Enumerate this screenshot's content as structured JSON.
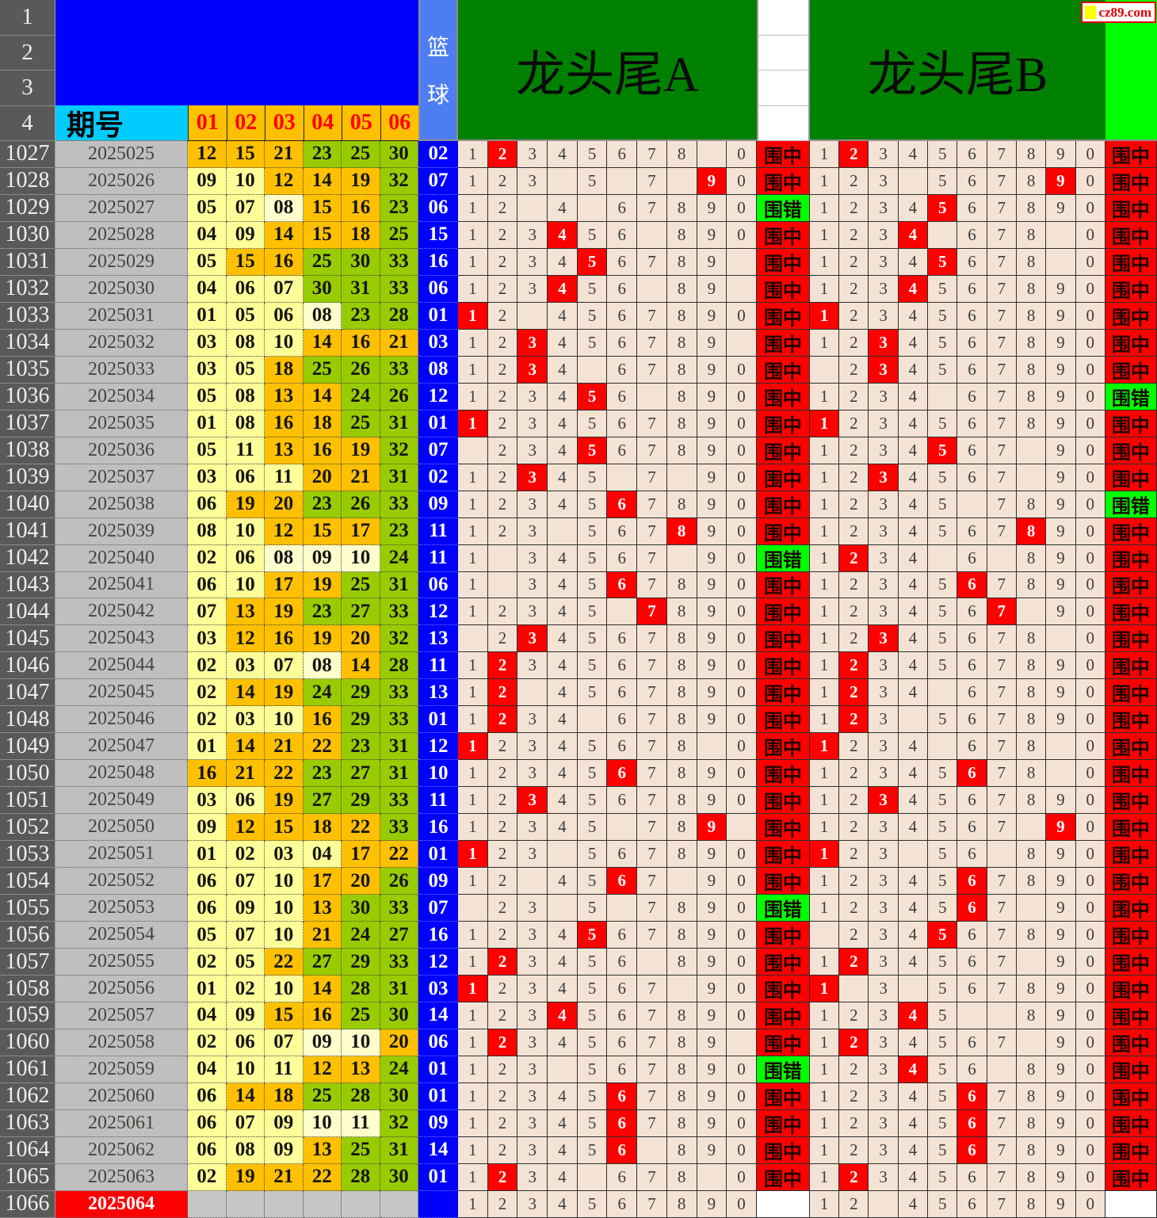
{
  "watermark": {
    "text": "cz89.com"
  },
  "corner_rows": [
    "1",
    "2",
    "3",
    "4"
  ],
  "header": {
    "issue": "期号",
    "balls": [
      "01",
      "02",
      "03",
      "04",
      "05",
      "06"
    ],
    "basket_chars": [
      "篮",
      "球"
    ],
    "a_title": "龙头尾A",
    "b_title": "龙头尾B"
  },
  "labels": {
    "z": "围中",
    "c": "围错"
  },
  "digits": [
    1,
    2,
    3,
    4,
    5,
    6,
    7,
    8,
    9,
    0
  ],
  "colors": {
    "pure_blue": "#0000FF",
    "basket_header_blue": "#4D7DF0",
    "cyan": "#00CCFF",
    "gold": "#FFC000",
    "gold_text_red": "#FF0000",
    "dark_green": "#008000",
    "bright_green": "#00FF00",
    "ball_low": "#FFFF99",
    "ball_light": "#FFFFCC",
    "ball_mid": "#FFC000",
    "ball_high": "#99CC00",
    "ball_empty": "#C6C6C6",
    "digit_beige": "#F4E3D4",
    "hit_red": "#FF0000",
    "miss_green": "#00FF00",
    "row_header_gray": "#595959",
    "issue_gray": "#BFBFBF"
  },
  "rows": [
    {
      "n": "1027",
      "issue": "2025025",
      "reds": [
        12,
        15,
        21,
        23,
        25,
        30
      ],
      "blue": "02",
      "a": {
        "miss": [
          9
        ],
        "hit": 2,
        "st": "z"
      },
      "b": {
        "miss": [],
        "hit": 2,
        "st": "z"
      }
    },
    {
      "n": "1028",
      "issue": "2025026",
      "reds": [
        9,
        10,
        12,
        14,
        19,
        32
      ],
      "blue": "07",
      "a": {
        "miss": [
          4,
          6,
          8
        ],
        "hit": 9,
        "st": "z"
      },
      "b": {
        "miss": [
          4
        ],
        "hit": 9,
        "st": "z"
      }
    },
    {
      "n": "1029",
      "issue": "2025027",
      "reds": [
        5,
        7,
        8,
        15,
        16,
        23
      ],
      "blue": "06",
      "lt": [
        8
      ],
      "a": {
        "miss": [
          3,
          5
        ],
        "hit": null,
        "st": "c"
      },
      "b": {
        "miss": [],
        "hit": 5,
        "st": "z"
      }
    },
    {
      "n": "1030",
      "issue": "2025028",
      "reds": [
        4,
        9,
        14,
        15,
        18,
        25
      ],
      "blue": "15",
      "a": {
        "miss": [
          7
        ],
        "hit": 4,
        "st": "z"
      },
      "b": {
        "miss": [
          5,
          9
        ],
        "hit": 4,
        "st": "z"
      }
    },
    {
      "n": "1031",
      "issue": "2025029",
      "reds": [
        5,
        15,
        16,
        25,
        30,
        33
      ],
      "blue": "16",
      "a": {
        "miss": [
          0
        ],
        "hit": 5,
        "st": "z"
      },
      "b": {
        "miss": [
          9
        ],
        "hit": 5,
        "st": "z"
      }
    },
    {
      "n": "1032",
      "issue": "2025030",
      "reds": [
        4,
        6,
        7,
        30,
        31,
        33
      ],
      "blue": "06",
      "a": {
        "miss": [
          7,
          0
        ],
        "hit": 4,
        "st": "z"
      },
      "b": {
        "miss": [],
        "hit": 4,
        "st": "z"
      }
    },
    {
      "n": "1033",
      "issue": "2025031",
      "reds": [
        1,
        5,
        6,
        8,
        23,
        28
      ],
      "blue": "01",
      "lt": [
        8
      ],
      "a": {
        "miss": [
          3
        ],
        "hit": 1,
        "st": "z"
      },
      "b": {
        "miss": [],
        "hit": 1,
        "st": "z"
      }
    },
    {
      "n": "1034",
      "issue": "2025032",
      "reds": [
        3,
        8,
        10,
        14,
        16,
        21
      ],
      "blue": "03",
      "a": {
        "miss": [
          0
        ],
        "hit": 3,
        "st": "z"
      },
      "b": {
        "miss": [],
        "hit": 3,
        "st": "z"
      }
    },
    {
      "n": "1035",
      "issue": "2025033",
      "reds": [
        3,
        5,
        18,
        25,
        26,
        33
      ],
      "blue": "08",
      "a": {
        "miss": [
          5
        ],
        "hit": 3,
        "st": "z"
      },
      "b": {
        "miss": [
          1
        ],
        "hit": 3,
        "st": "z"
      }
    },
    {
      "n": "1036",
      "issue": "2025034",
      "reds": [
        5,
        8,
        13,
        14,
        24,
        26
      ],
      "blue": "12",
      "a": {
        "miss": [
          7
        ],
        "hit": 5,
        "st": "z"
      },
      "b": {
        "miss": [
          5
        ],
        "hit": null,
        "st": "c"
      }
    },
    {
      "n": "1037",
      "issue": "2025035",
      "reds": [
        1,
        8,
        16,
        18,
        25,
        31
      ],
      "blue": "01",
      "a": {
        "miss": [],
        "hit": 1,
        "st": "z"
      },
      "b": {
        "miss": [],
        "hit": 1,
        "st": "z"
      }
    },
    {
      "n": "1038",
      "issue": "2025036",
      "reds": [
        5,
        11,
        13,
        16,
        19,
        32
      ],
      "blue": "07",
      "a": {
        "miss": [
          1
        ],
        "hit": 5,
        "st": "z"
      },
      "b": {
        "miss": [
          8
        ],
        "hit": 5,
        "st": "z"
      }
    },
    {
      "n": "1039",
      "issue": "2025037",
      "reds": [
        3,
        6,
        11,
        20,
        21,
        31
      ],
      "blue": "02",
      "a": {
        "miss": [
          6,
          8
        ],
        "hit": 3,
        "st": "z"
      },
      "b": {
        "miss": [
          8
        ],
        "hit": 3,
        "st": "z"
      }
    },
    {
      "n": "1040",
      "issue": "2025038",
      "reds": [
        6,
        19,
        20,
        23,
        26,
        33
      ],
      "blue": "09",
      "a": {
        "miss": [],
        "hit": 6,
        "st": "z"
      },
      "b": {
        "miss": [
          6
        ],
        "hit": null,
        "st": "c"
      }
    },
    {
      "n": "1041",
      "issue": "2025039",
      "reds": [
        8,
        10,
        12,
        15,
        17,
        23
      ],
      "blue": "11",
      "a": {
        "miss": [
          4
        ],
        "hit": 8,
        "st": "z"
      },
      "b": {
        "miss": [],
        "hit": 8,
        "st": "z"
      }
    },
    {
      "n": "1042",
      "issue": "2025040",
      "reds": [
        2,
        6,
        8,
        9,
        10,
        24
      ],
      "blue": "11",
      "lt": [
        8,
        9,
        10
      ],
      "a": {
        "miss": [
          2,
          8
        ],
        "hit": null,
        "st": "c"
      },
      "b": {
        "miss": [
          5,
          7
        ],
        "hit": 2,
        "st": "z"
      }
    },
    {
      "n": "1043",
      "issue": "2025041",
      "reds": [
        6,
        10,
        17,
        19,
        25,
        31
      ],
      "blue": "06",
      "a": {
        "miss": [
          2
        ],
        "hit": 6,
        "st": "z"
      },
      "b": {
        "miss": [],
        "hit": 6,
        "st": "z"
      }
    },
    {
      "n": "1044",
      "issue": "2025042",
      "reds": [
        7,
        13,
        19,
        23,
        27,
        33
      ],
      "blue": "12",
      "a": {
        "miss": [
          6
        ],
        "hit": 7,
        "st": "z"
      },
      "b": {
        "miss": [
          8
        ],
        "hit": 7,
        "st": "z"
      }
    },
    {
      "n": "1045",
      "issue": "2025043",
      "reds": [
        3,
        12,
        16,
        19,
        20,
        32
      ],
      "blue": "13",
      "a": {
        "miss": [
          1
        ],
        "hit": 3,
        "st": "z"
      },
      "b": {
        "miss": [
          9
        ],
        "hit": 3,
        "st": "z"
      }
    },
    {
      "n": "1046",
      "issue": "2025044",
      "reds": [
        2,
        3,
        7,
        8,
        14,
        28
      ],
      "blue": "11",
      "lt": [
        8
      ],
      "a": {
        "miss": [],
        "hit": 2,
        "st": "z"
      },
      "b": {
        "miss": [],
        "hit": 2,
        "st": "z"
      }
    },
    {
      "n": "1047",
      "issue": "2025045",
      "reds": [
        2,
        14,
        19,
        24,
        29,
        33
      ],
      "blue": "13",
      "a": {
        "miss": [
          3
        ],
        "hit": 2,
        "st": "z"
      },
      "b": {
        "miss": [
          5
        ],
        "hit": 2,
        "st": "z"
      }
    },
    {
      "n": "1048",
      "issue": "2025046",
      "reds": [
        2,
        3,
        10,
        16,
        29,
        33
      ],
      "blue": "01",
      "a": {
        "miss": [
          5
        ],
        "hit": 2,
        "st": "z"
      },
      "b": {
        "miss": [
          4
        ],
        "hit": 2,
        "st": "z"
      }
    },
    {
      "n": "1049",
      "issue": "2025047",
      "reds": [
        1,
        14,
        21,
        22,
        23,
        31
      ],
      "blue": "12",
      "a": {
        "miss": [
          9
        ],
        "hit": 1,
        "st": "z"
      },
      "b": {
        "miss": [
          5,
          9
        ],
        "hit": 1,
        "st": "z"
      }
    },
    {
      "n": "1050",
      "issue": "2025048",
      "reds": [
        16,
        21,
        22,
        23,
        27,
        31
      ],
      "blue": "10",
      "a": {
        "miss": [],
        "hit": 6,
        "st": "z"
      },
      "b": {
        "miss": [
          9
        ],
        "hit": 6,
        "st": "z"
      }
    },
    {
      "n": "1051",
      "issue": "2025049",
      "reds": [
        3,
        6,
        19,
        27,
        29,
        33
      ],
      "blue": "11",
      "a": {
        "miss": [],
        "hit": 3,
        "st": "z"
      },
      "b": {
        "miss": [],
        "hit": 3,
        "st": "z"
      }
    },
    {
      "n": "1052",
      "issue": "2025050",
      "reds": [
        9,
        12,
        15,
        18,
        22,
        33
      ],
      "blue": "16",
      "a": {
        "miss": [
          6,
          0
        ],
        "hit": 9,
        "st": "z"
      },
      "b": {
        "miss": [
          8
        ],
        "hit": 9,
        "st": "z"
      }
    },
    {
      "n": "1053",
      "issue": "2025051",
      "reds": [
        1,
        2,
        3,
        4,
        17,
        22
      ],
      "blue": "01",
      "a": {
        "miss": [
          4
        ],
        "hit": 1,
        "st": "z"
      },
      "b": {
        "miss": [
          4,
          7
        ],
        "hit": 1,
        "st": "z"
      }
    },
    {
      "n": "1054",
      "issue": "2025052",
      "reds": [
        6,
        7,
        10,
        17,
        20,
        26
      ],
      "blue": "09",
      "a": {
        "miss": [
          3,
          8
        ],
        "hit": 6,
        "st": "z"
      },
      "b": {
        "miss": [],
        "hit": 6,
        "st": "z"
      }
    },
    {
      "n": "1055",
      "issue": "2025053",
      "reds": [
        6,
        9,
        10,
        13,
        30,
        33
      ],
      "blue": "07",
      "a": {
        "miss": [
          1,
          4,
          6
        ],
        "hit": null,
        "st": "c"
      },
      "b": {
        "miss": [
          8
        ],
        "hit": 6,
        "st": "z"
      }
    },
    {
      "n": "1056",
      "issue": "2025054",
      "reds": [
        5,
        7,
        10,
        21,
        24,
        27
      ],
      "blue": "16",
      "a": {
        "miss": [],
        "hit": 5,
        "st": "z"
      },
      "b": {
        "miss": [
          1
        ],
        "hit": 5,
        "st": "z"
      }
    },
    {
      "n": "1057",
      "issue": "2025055",
      "reds": [
        2,
        5,
        22,
        27,
        29,
        33
      ],
      "blue": "12",
      "a": {
        "miss": [
          7
        ],
        "hit": 2,
        "st": "z"
      },
      "b": {
        "miss": [
          8
        ],
        "hit": 2,
        "st": "z"
      }
    },
    {
      "n": "1058",
      "issue": "2025056",
      "reds": [
        1,
        2,
        10,
        14,
        28,
        31
      ],
      "blue": "03",
      "a": {
        "miss": [
          8
        ],
        "hit": 1,
        "st": "z"
      },
      "b": {
        "miss": [
          2,
          4
        ],
        "hit": 1,
        "st": "z"
      }
    },
    {
      "n": "1059",
      "issue": "2025057",
      "reds": [
        4,
        9,
        15,
        16,
        25,
        30
      ],
      "blue": "14",
      "a": {
        "miss": [],
        "hit": 4,
        "st": "z"
      },
      "b": {
        "miss": [
          6,
          7
        ],
        "hit": 4,
        "st": "z"
      }
    },
    {
      "n": "1060",
      "issue": "2025058",
      "reds": [
        2,
        6,
        7,
        9,
        10,
        20
      ],
      "blue": "06",
      "lt": [
        9,
        10
      ],
      "a": {
        "miss": [
          0
        ],
        "hit": 2,
        "st": "z"
      },
      "b": {
        "miss": [
          8
        ],
        "hit": 2,
        "st": "z"
      }
    },
    {
      "n": "1061",
      "issue": "2025059",
      "reds": [
        4,
        10,
        11,
        12,
        13,
        24
      ],
      "blue": "01",
      "a": {
        "miss": [
          4
        ],
        "hit": null,
        "st": "c"
      },
      "b": {
        "miss": [
          7
        ],
        "hit": 4,
        "st": "z"
      }
    },
    {
      "n": "1062",
      "issue": "2025060",
      "reds": [
        6,
        14,
        18,
        25,
        28,
        30
      ],
      "blue": "01",
      "a": {
        "miss": [],
        "hit": 6,
        "st": "z"
      },
      "b": {
        "miss": [],
        "hit": 6,
        "st": "z"
      }
    },
    {
      "n": "1063",
      "issue": "2025061",
      "reds": [
        6,
        7,
        9,
        10,
        11,
        32
      ],
      "blue": "09",
      "lt": [
        10,
        11
      ],
      "a": {
        "miss": [],
        "hit": 6,
        "st": "z"
      },
      "b": {
        "miss": [],
        "hit": 6,
        "st": "z"
      }
    },
    {
      "n": "1064",
      "issue": "2025062",
      "reds": [
        6,
        8,
        9,
        13,
        25,
        31
      ],
      "blue": "14",
      "a": {
        "miss": [
          7
        ],
        "hit": 6,
        "st": "z"
      },
      "b": {
        "miss": [],
        "hit": 6,
        "st": "z"
      }
    },
    {
      "n": "1065",
      "issue": "2025063",
      "reds": [
        2,
        19,
        21,
        22,
        28,
        30
      ],
      "blue": "01",
      "a": {
        "miss": [
          5,
          9
        ],
        "hit": 2,
        "st": "z"
      },
      "b": {
        "miss": [],
        "hit": 2,
        "st": "z"
      }
    },
    {
      "n": "1066",
      "issue": "2025064",
      "hl": true,
      "reds": [],
      "blue": "",
      "a": {
        "miss": [],
        "hit": null,
        "st": ""
      },
      "b": {
        "miss": [
          3
        ],
        "hit": null,
        "st": ""
      }
    }
  ]
}
